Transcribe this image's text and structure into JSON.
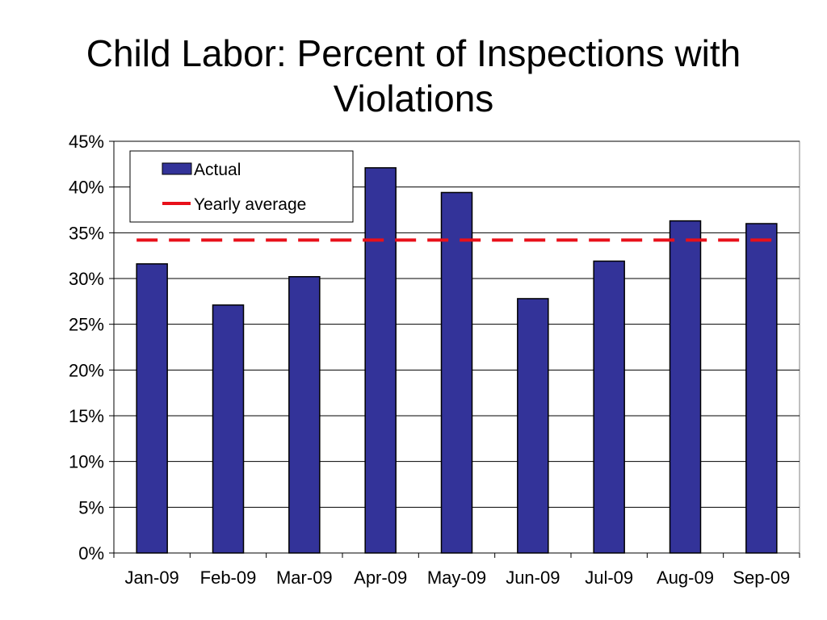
{
  "chart_data": {
    "type": "bar",
    "title_lines": [
      "Child Labor: Percent of Inspections with",
      "Violations"
    ],
    "categories": [
      "Jan-09",
      "Feb-09",
      "Mar-09",
      "Apr-09",
      "May-09",
      "Jun-09",
      "Jul-09",
      "Aug-09",
      "Sep-09"
    ],
    "series": [
      {
        "name": "Actual",
        "values": [
          31.6,
          27.1,
          30.2,
          42.1,
          39.4,
          27.8,
          31.9,
          36.3,
          36.0
        ],
        "color": "#333399"
      }
    ],
    "reference_line": {
      "name": "Yearly average",
      "value": 34.2,
      "color": "#e8101a",
      "style": "dashed"
    },
    "y_ticks": [
      "0%",
      "5%",
      "10%",
      "15%",
      "20%",
      "25%",
      "30%",
      "35%",
      "40%",
      "45%"
    ],
    "ylim": [
      0,
      45
    ],
    "grid": true,
    "legend_position": "top-left",
    "xlabel": "",
    "ylabel": ""
  }
}
